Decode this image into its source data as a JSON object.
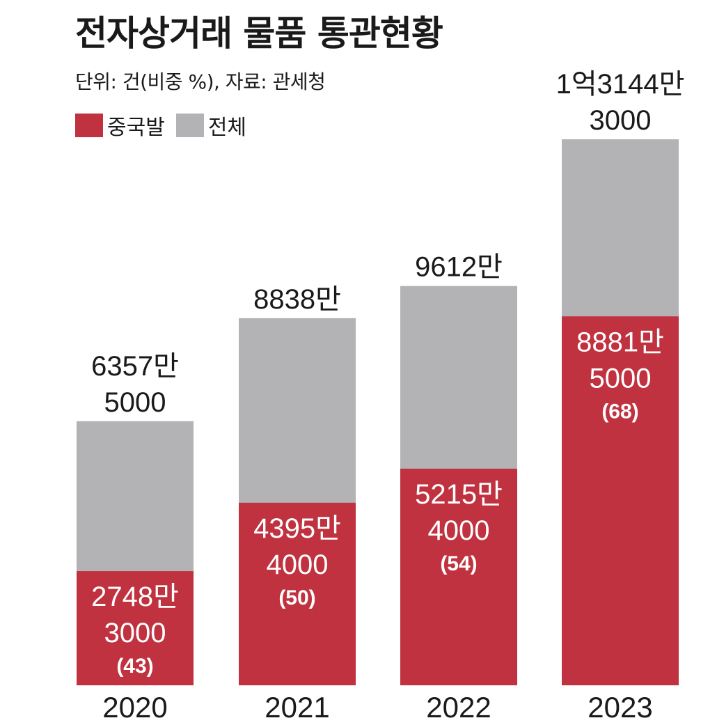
{
  "title": "전자상거래 물품 통관현황",
  "subtitle": "단위: 건(비중 %), 자료: 관세청",
  "legend": {
    "china": "중국발",
    "total": "전체"
  },
  "colors": {
    "china": "#c0323f",
    "total": "#b3b3b6",
    "text_dark": "#1a1a1a",
    "text_light": "#ffffff"
  },
  "chart_data": {
    "type": "bar",
    "stacked": "overlay",
    "categories": [
      "2020",
      "2021",
      "2022",
      "2023"
    ],
    "series": [
      {
        "name": "중국발",
        "values": [
          27483000,
          43954000,
          52154000,
          88815000
        ]
      },
      {
        "name": "전체",
        "values": [
          63575000,
          88380000,
          96120000,
          131443000
        ]
      }
    ],
    "share_percent": [
      43,
      50,
      54,
      68
    ],
    "total_labels": [
      [
        "6357만",
        "5000"
      ],
      [
        "8838만"
      ],
      [
        "9612만"
      ],
      [
        "1억3144만",
        "3000"
      ]
    ],
    "china_labels": [
      [
        "2748만",
        "3000"
      ],
      [
        "4395만",
        "4000"
      ],
      [
        "5215만",
        "4000"
      ],
      [
        "8881만",
        "5000"
      ]
    ],
    "share_labels": [
      "(43)",
      "(50)",
      "(54)",
      "(68)"
    ],
    "ylim": [
      0,
      164000000
    ],
    "grid": false,
    "legend_position": "top-left"
  }
}
